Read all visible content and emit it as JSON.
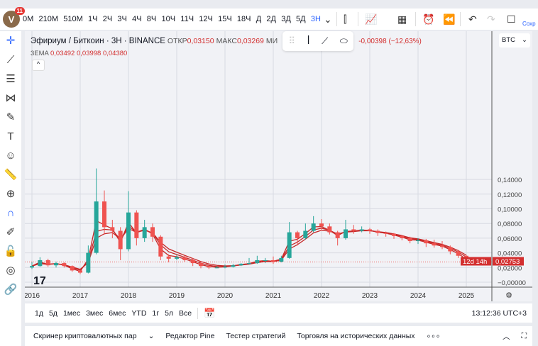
{
  "header": {
    "avatar_letter": "V",
    "notifications": "11",
    "timeframes": [
      "0M",
      "210M",
      "510M",
      "1Ч",
      "2Ч",
      "3Ч",
      "4Ч",
      "8Ч",
      "10Ч",
      "11Ч",
      "12Ч",
      "15Ч",
      "18Ч",
      "Д",
      "2Д",
      "3Д",
      "5Д",
      "3Н"
    ],
    "active_timeframe": "3Н",
    "save_label": "Сохр"
  },
  "legend": {
    "symbol": "Эфириум / Биткоин · 3Н · BINANCE",
    "open_label": "ОТКР",
    "open": "0,03150",
    "high_label": "МАКС",
    "high": "0,03269",
    "low_label": "МИ",
    "change": "-0,00398 (−12,63%)",
    "ema_label": "3EMA",
    "ema_values": [
      "0,03492",
      "0,03998",
      "0,04380"
    ]
  },
  "currency": "BTC",
  "price_label": {
    "price": "0,02753",
    "countdown": "12d 14h"
  },
  "range_bar": {
    "ranges": [
      "1д",
      "5д",
      "1мес",
      "3мес",
      "6мес",
      "YTD",
      "1г",
      "5л",
      "Все"
    ],
    "time": "13:12:36 UTC+3"
  },
  "bottom_panel": {
    "tabs": [
      "Скринер криптовалютных пар",
      "Редактор Pine",
      "Тестер стратегий",
      "Торговля на исторических данных"
    ]
  },
  "colors": {
    "up": "#26a69a",
    "down": "#ef5350",
    "ema": "#c62828",
    "accent": "#2962ff"
  },
  "chart_data": {
    "type": "candlestick",
    "ylim": [
      -0.005,
      0.17
    ],
    "y_ticks": [
      "0,14000",
      "0,12000",
      "0,10000",
      "0,08000",
      "0,06000",
      "0,04000",
      "0,02000",
      "−0,00000"
    ],
    "y_tick_values": [
      0.14,
      0.12,
      0.1,
      0.08,
      0.06,
      0.04,
      0.02,
      0
    ],
    "x_ticks": [
      "2016",
      "2017",
      "2018",
      "2019",
      "2020",
      "2021",
      "2022",
      "2023",
      "2024",
      "2025"
    ],
    "dates": [
      "2016-01",
      "2016-03",
      "2016-05",
      "2016-07",
      "2016-09",
      "2016-11",
      "2017-01",
      "2017-03",
      "2017-05",
      "2017-07",
      "2017-09",
      "2017-11",
      "2018-01",
      "2018-03",
      "2018-05",
      "2018-07",
      "2018-09",
      "2018-11",
      "2019-01",
      "2019-03",
      "2019-05",
      "2019-07",
      "2019-09",
      "2019-11",
      "2020-01",
      "2020-03",
      "2020-05",
      "2020-07",
      "2020-09",
      "2020-11",
      "2021-01",
      "2021-03",
      "2021-05",
      "2021-07",
      "2021-09",
      "2021-11",
      "2022-01",
      "2022-03",
      "2022-05",
      "2022-07",
      "2022-09",
      "2022-11",
      "2023-01",
      "2023-03",
      "2023-05",
      "2023-07",
      "2023-09",
      "2023-11",
      "2024-01",
      "2024-03",
      "2024-05",
      "2024-07",
      "2024-09",
      "2024-11",
      "2025-01"
    ],
    "ohlc": [
      [
        0.02,
        0.028,
        0.018,
        0.022
      ],
      [
        0.022,
        0.034,
        0.021,
        0.03
      ],
      [
        0.03,
        0.032,
        0.021,
        0.023
      ],
      [
        0.023,
        0.028,
        0.02,
        0.026
      ],
      [
        0.026,
        0.027,
        0.02,
        0.022
      ],
      [
        0.022,
        0.023,
        0.014,
        0.016
      ],
      [
        0.016,
        0.017,
        0.011,
        0.013
      ],
      [
        0.013,
        0.05,
        0.012,
        0.04
      ],
      [
        0.04,
        0.155,
        0.038,
        0.11
      ],
      [
        0.11,
        0.125,
        0.065,
        0.075
      ],
      [
        0.075,
        0.085,
        0.06,
        0.07
      ],
      [
        0.07,
        0.075,
        0.03,
        0.045
      ],
      [
        0.045,
        0.124,
        0.042,
        0.095
      ],
      [
        0.095,
        0.098,
        0.05,
        0.06
      ],
      [
        0.06,
        0.085,
        0.055,
        0.075
      ],
      [
        0.075,
        0.08,
        0.055,
        0.062
      ],
      [
        0.062,
        0.064,
        0.03,
        0.035
      ],
      [
        0.035,
        0.038,
        0.027,
        0.032
      ],
      [
        0.032,
        0.037,
        0.03,
        0.034
      ],
      [
        0.034,
        0.036,
        0.028,
        0.03
      ],
      [
        0.03,
        0.033,
        0.022,
        0.026
      ],
      [
        0.026,
        0.028,
        0.019,
        0.022
      ],
      [
        0.022,
        0.023,
        0.018,
        0.02
      ],
      [
        0.02,
        0.022,
        0.019,
        0.02
      ],
      [
        0.02,
        0.024,
        0.019,
        0.021
      ],
      [
        0.021,
        0.025,
        0.02,
        0.023
      ],
      [
        0.023,
        0.026,
        0.022,
        0.025
      ],
      [
        0.025,
        0.033,
        0.024,
        0.026
      ],
      [
        0.026,
        0.036,
        0.025,
        0.03
      ],
      [
        0.03,
        0.033,
        0.026,
        0.03
      ],
      [
        0.03,
        0.035,
        0.025,
        0.028
      ],
      [
        0.028,
        0.036,
        0.027,
        0.033
      ],
      [
        0.033,
        0.082,
        0.032,
        0.068
      ],
      [
        0.068,
        0.07,
        0.05,
        0.06
      ],
      [
        0.06,
        0.08,
        0.058,
        0.07
      ],
      [
        0.07,
        0.09,
        0.068,
        0.08
      ],
      [
        0.08,
        0.086,
        0.07,
        0.076
      ],
      [
        0.076,
        0.08,
        0.065,
        0.068
      ],
      [
        0.068,
        0.07,
        0.05,
        0.06
      ],
      [
        0.06,
        0.085,
        0.058,
        0.072
      ],
      [
        0.072,
        0.078,
        0.066,
        0.07
      ],
      [
        0.07,
        0.076,
        0.068,
        0.072
      ],
      [
        0.072,
        0.074,
        0.066,
        0.07
      ],
      [
        0.07,
        0.072,
        0.063,
        0.067
      ],
      [
        0.067,
        0.069,
        0.062,
        0.066
      ],
      [
        0.066,
        0.067,
        0.059,
        0.063
      ],
      [
        0.063,
        0.064,
        0.057,
        0.06
      ],
      [
        0.06,
        0.062,
        0.053,
        0.056
      ],
      [
        0.056,
        0.06,
        0.052,
        0.057
      ],
      [
        0.057,
        0.059,
        0.048,
        0.053
      ],
      [
        0.053,
        0.058,
        0.047,
        0.05
      ],
      [
        0.05,
        0.056,
        0.045,
        0.048
      ],
      [
        0.048,
        0.05,
        0.038,
        0.042
      ],
      [
        0.042,
        0.044,
        0.033,
        0.036
      ],
      [
        0.036,
        0.037,
        0.024,
        0.0275
      ]
    ],
    "last_price": 0.02753
  }
}
